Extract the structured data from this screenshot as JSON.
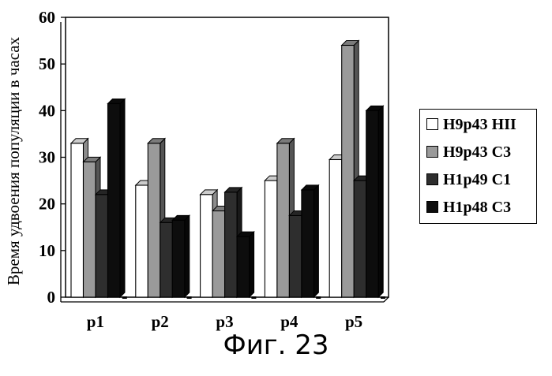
{
  "chart_data": {
    "type": "bar",
    "ylabel": "Время удвоения популяции в часах",
    "ylim": [
      0,
      60
    ],
    "yticks": [
      0,
      10,
      20,
      30,
      40,
      50,
      60
    ],
    "grid": true,
    "legend_position": "right",
    "categories": [
      "p1",
      "p2",
      "p3",
      "p4",
      "p5"
    ],
    "series": [
      {
        "name": "H9p43 HII",
        "color": "#ffffff",
        "values": [
          33,
          24,
          22,
          25,
          29.5
        ]
      },
      {
        "name": "H9p43 C3",
        "color": "#9a9a9a",
        "values": [
          29,
          33,
          18.5,
          33,
          54
        ]
      },
      {
        "name": "H1p49 C1",
        "color": "#2e2e2e",
        "values": [
          22,
          16,
          22.5,
          17.5,
          25
        ]
      },
      {
        "name": "H1p48 C3",
        "color": "#0d0d0d",
        "values": [
          41.5,
          16.5,
          13,
          23,
          40
        ]
      }
    ]
  },
  "caption": "Фиг. 23"
}
